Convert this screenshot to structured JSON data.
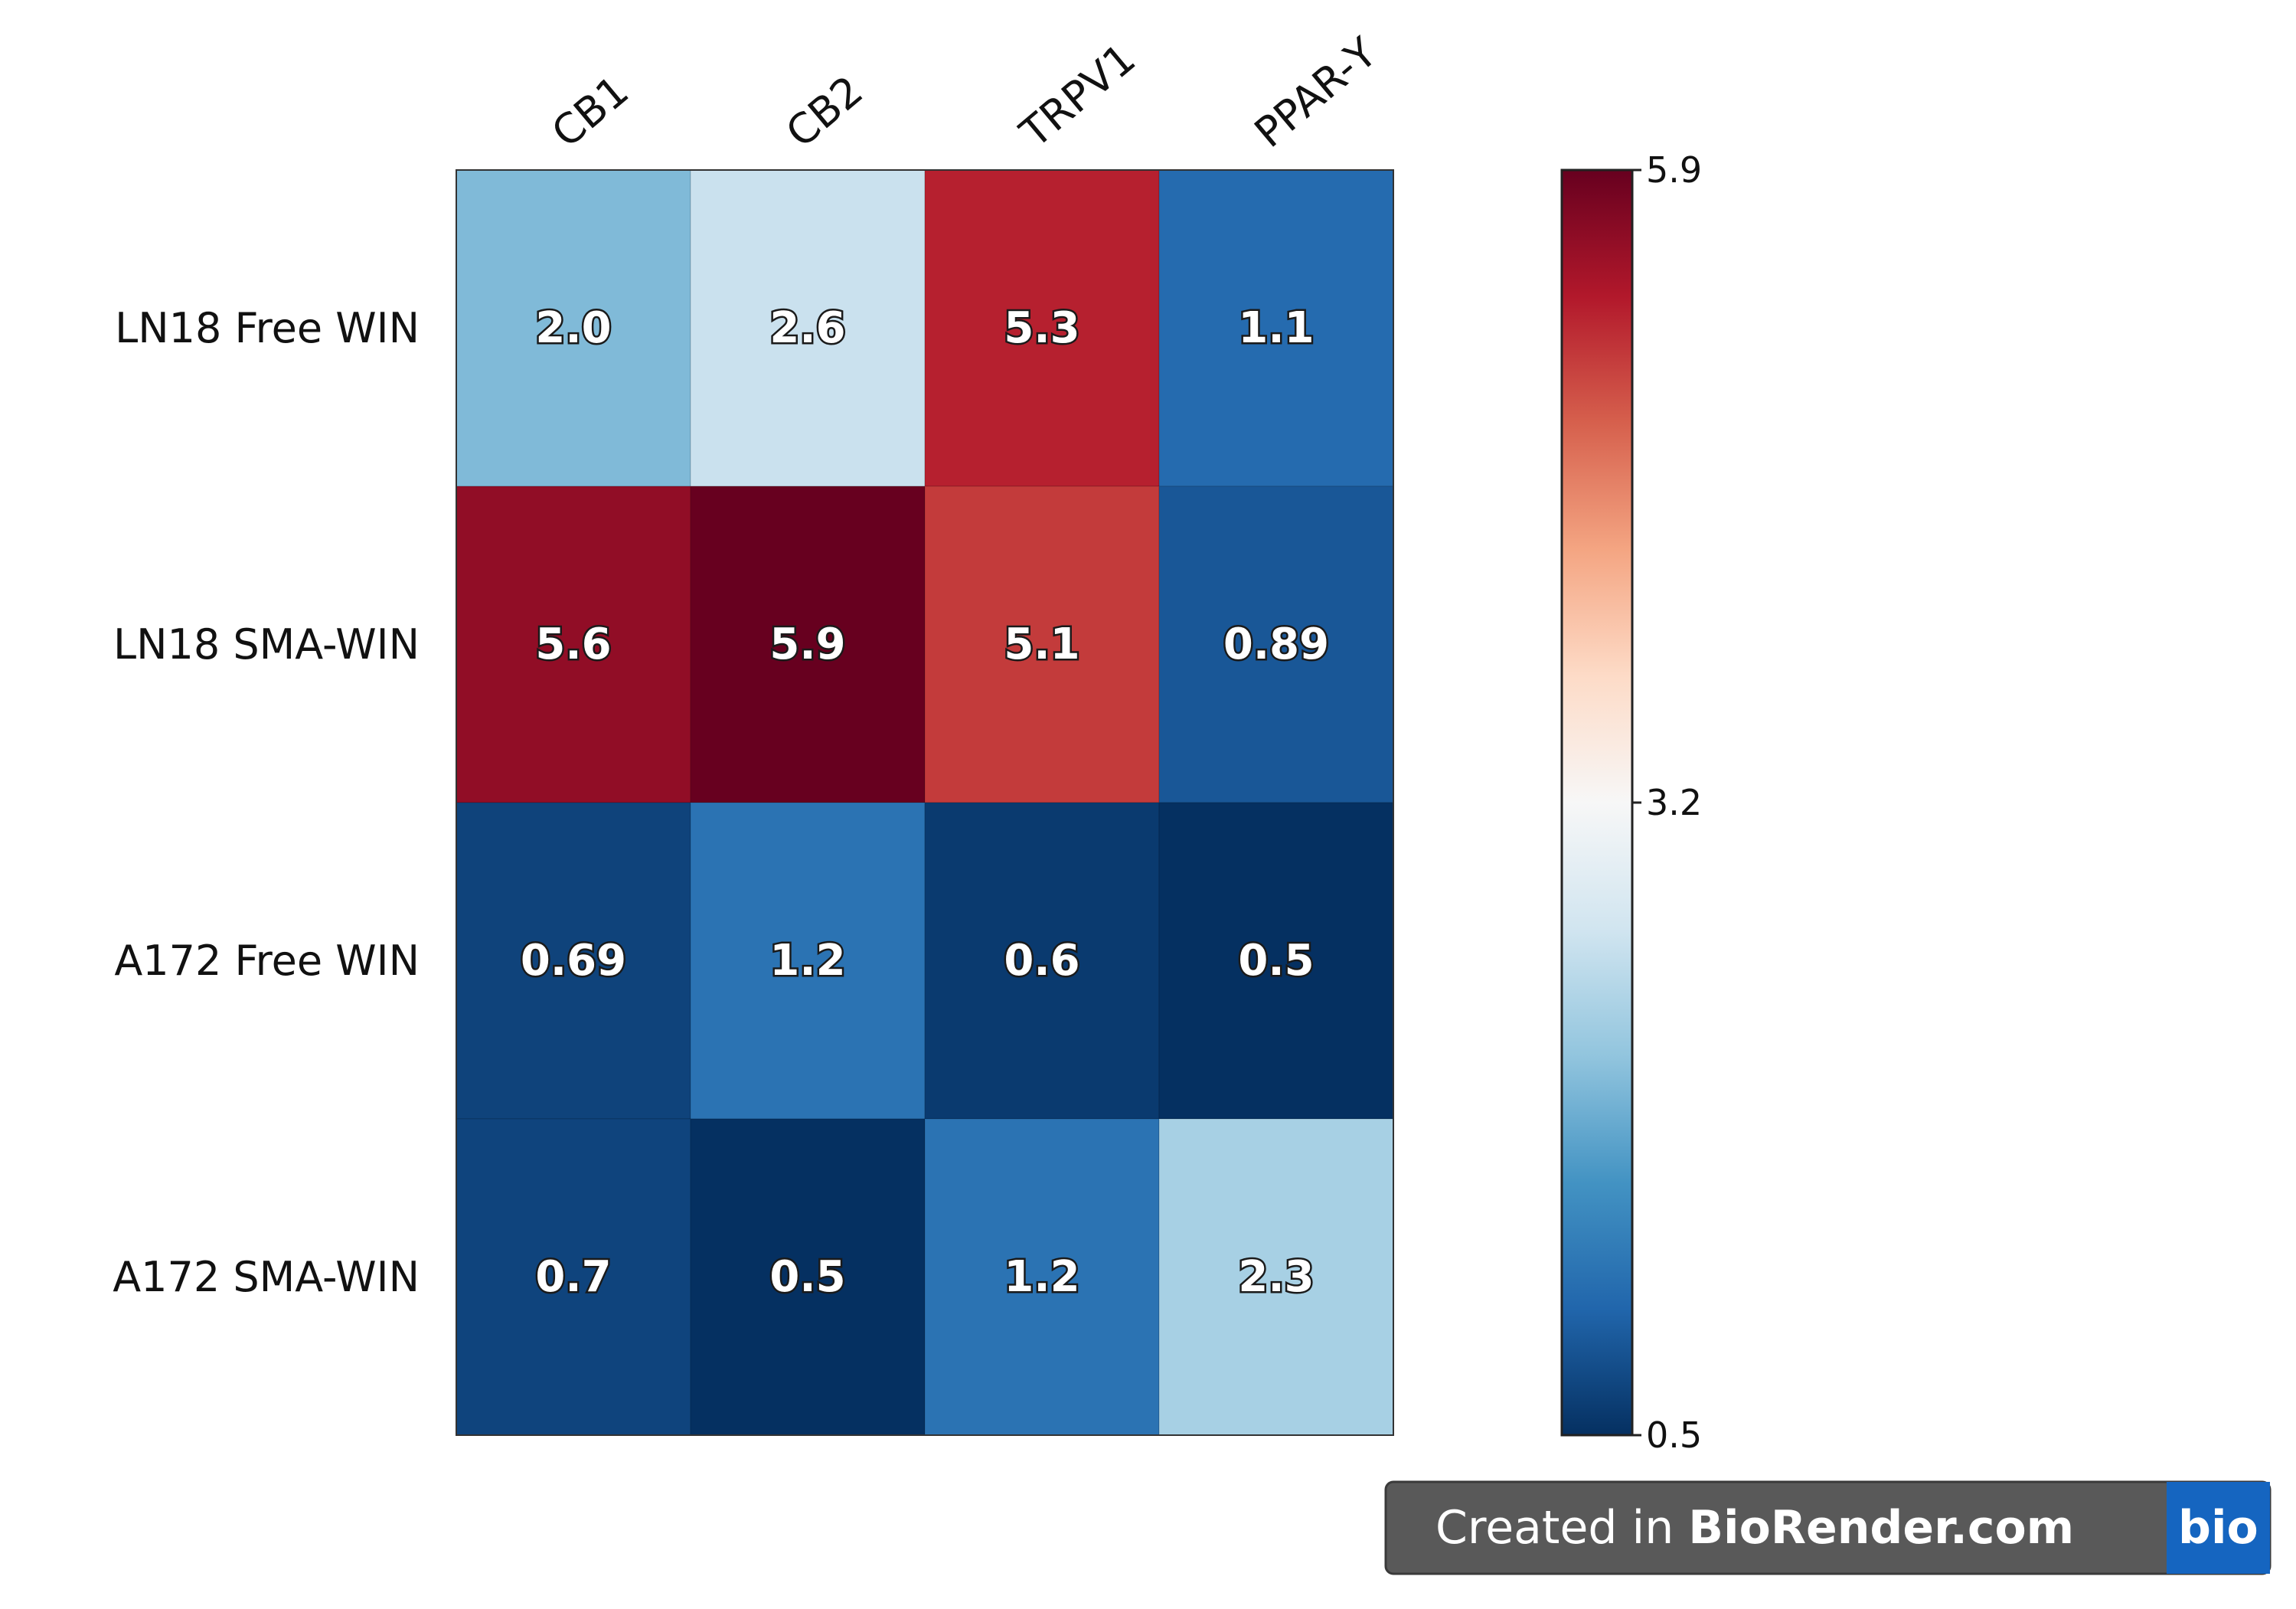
{
  "chart_data": {
    "type": "heatmap",
    "title": "",
    "rows": [
      "LN18 Free WIN",
      "LN18 SMA-WIN",
      "A172 Free WIN",
      "A172 SMA-WIN"
    ],
    "columns": [
      "CB1",
      "CB2",
      "TRPV1",
      "PPAR-Υ"
    ],
    "values": [
      [
        2.0,
        2.6,
        5.3,
        1.1
      ],
      [
        5.6,
        5.9,
        5.1,
        0.89
      ],
      [
        0.69,
        1.2,
        0.6,
        0.5
      ],
      [
        0.7,
        0.5,
        1.2,
        2.3
      ]
    ],
    "labels": [
      [
        "2.0",
        "2.6",
        "5.3",
        "1.1"
      ],
      [
        "5.6",
        "5.9",
        "5.1",
        "0.89"
      ],
      [
        "0.69",
        "1.2",
        "0.6",
        "0.5"
      ],
      [
        "0.7",
        "0.5",
        "1.2",
        "2.3"
      ]
    ],
    "colorbar": {
      "min": 0.5,
      "max": 5.9,
      "ticks": [
        "5.9",
        "3.2",
        "0.5"
      ],
      "tick_values": [
        5.9,
        3.2,
        0.5
      ]
    },
    "colormap": [
      "#053061",
      "#2166ac",
      "#4393c3",
      "#92c5de",
      "#d1e5f0",
      "#f7f7f7",
      "#fddbc7",
      "#f4a582",
      "#d6604d",
      "#b2182b",
      "#67001f"
    ]
  },
  "credit": {
    "prefix": "Created in ",
    "brand": "BioRender.com",
    "logo": "bio",
    "bg_color": "#595959",
    "logo_bg_color": "#1565c0"
  }
}
